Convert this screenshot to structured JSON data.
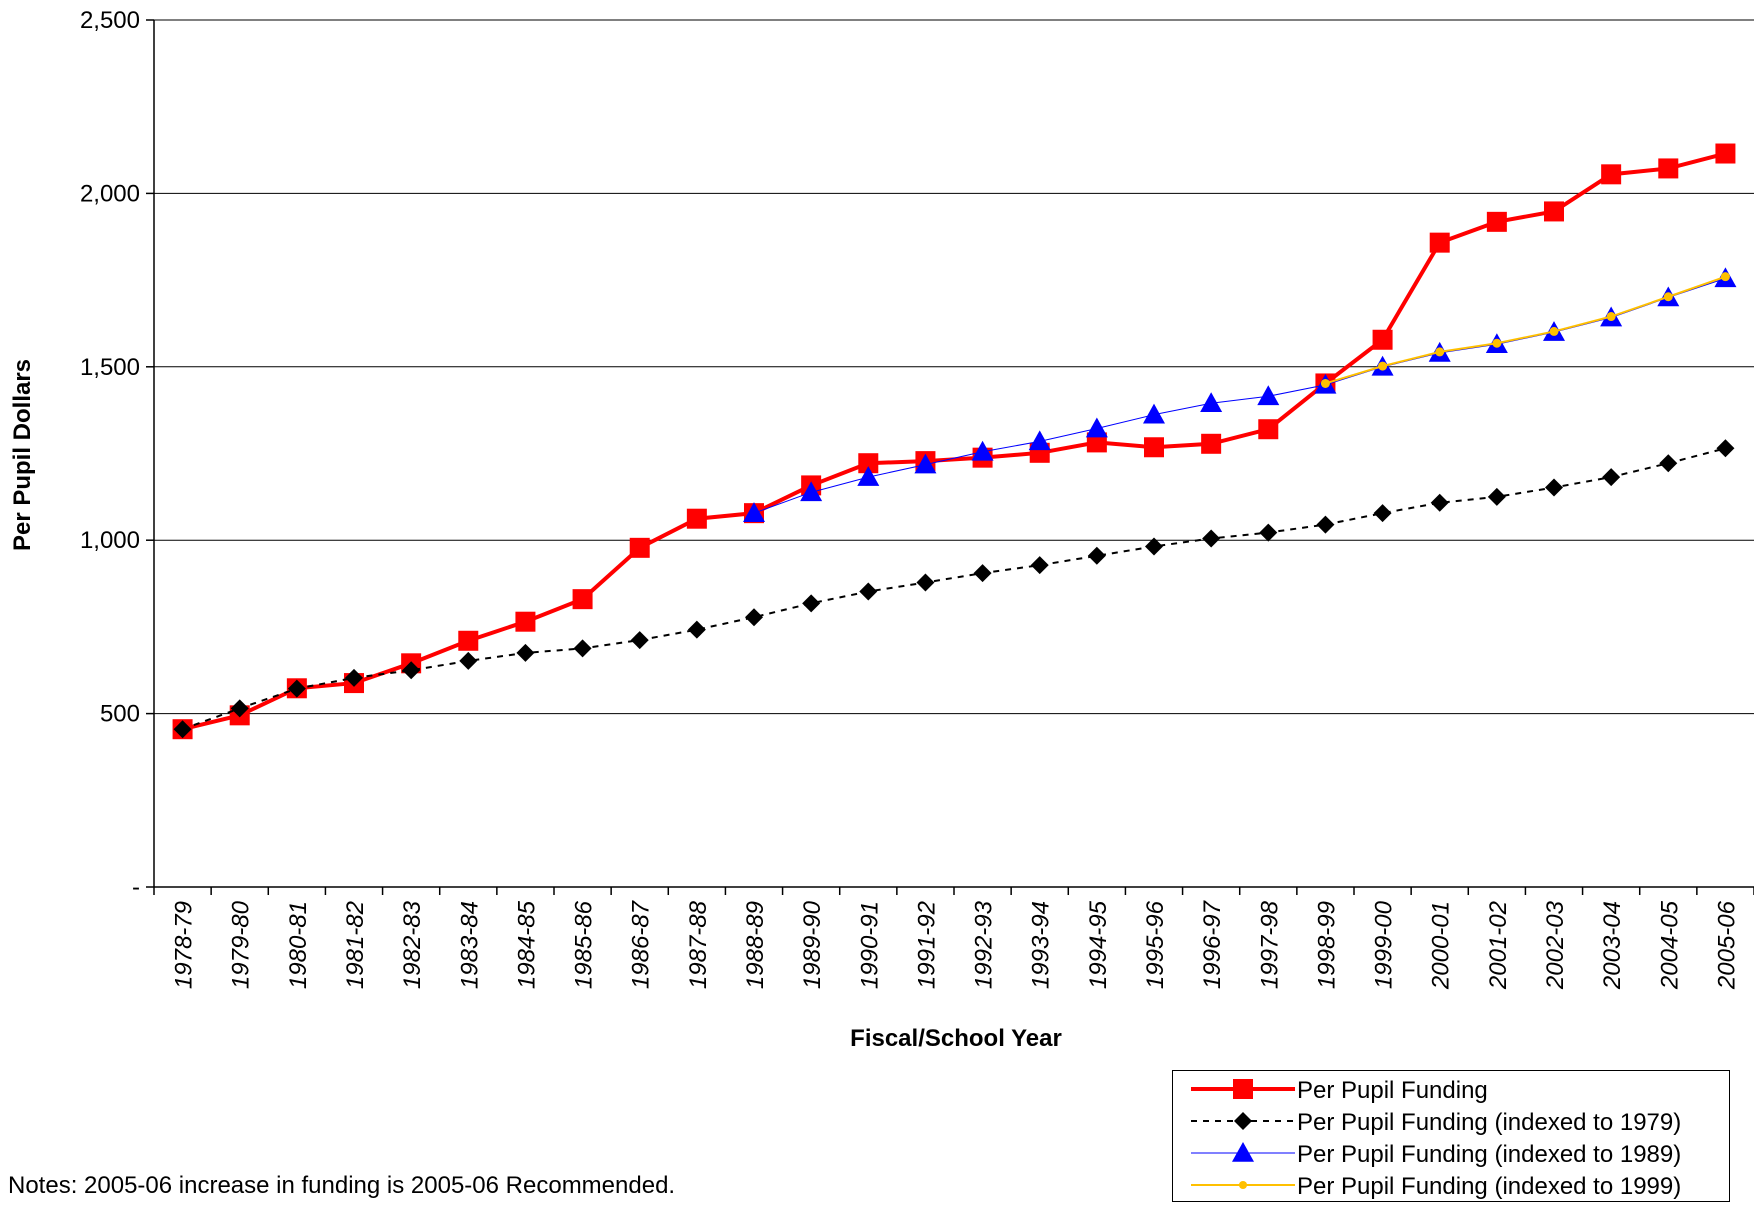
{
  "chart_data": {
    "type": "line",
    "title": "",
    "xlabel": "Fiscal/School Year",
    "ylabel": "Per Pupil Dollars",
    "ylim": [
      0,
      2500
    ],
    "yticks": [
      0,
      500,
      1000,
      1500,
      2000,
      2500
    ],
    "ytick_labels": [
      "-",
      "500",
      "1,000",
      "1,500",
      "2,000",
      "2,500"
    ],
    "grid": "horizontal",
    "legend_position": "bottom-right",
    "categories": [
      "1978-79",
      "1979-80",
      "1980-81",
      "1981-82",
      "1982-83",
      "1983-84",
      "1984-85",
      "1985-86",
      "1986-87",
      "1987-88",
      "1988-89",
      "1989-90",
      "1990-91",
      "1991-92",
      "1992-93",
      "1993-94",
      "1994-95",
      "1995-96",
      "1996-97",
      "1997-98",
      "1998-99",
      "1999-00",
      "2000-01",
      "2001-02",
      "2002-03",
      "2003-04",
      "2004-05",
      "2005-06"
    ],
    "series": [
      {
        "name": "Per Pupil Funding",
        "color": "#ff0000",
        "marker": "square",
        "line": "solid-thick",
        "values": [
          455,
          495,
          573,
          588,
          645,
          710,
          765,
          830,
          978,
          1062,
          1078,
          1158,
          1222,
          1228,
          1238,
          1252,
          1282,
          1268,
          1278,
          1320,
          1452,
          1578,
          1858,
          1918,
          1948,
          2055,
          2072,
          2115
        ]
      },
      {
        "name": "Per Pupil Funding (indexed to 1979)",
        "color": "#000000",
        "marker": "diamond",
        "line": "dashed",
        "values": [
          455,
          515,
          572,
          603,
          625,
          652,
          675,
          688,
          712,
          742,
          778,
          818,
          852,
          878,
          905,
          928,
          955,
          982,
          1005,
          1022,
          1045,
          1078,
          1108,
          1125,
          1152,
          1182,
          1222,
          1265
        ]
      },
      {
        "name": "Per Pupil Funding (indexed to 1989)",
        "color": "#0000ff",
        "marker": "triangle",
        "line": "thin",
        "values": [
          null,
          null,
          null,
          null,
          null,
          null,
          null,
          null,
          null,
          null,
          1078,
          1138,
          1182,
          1218,
          1255,
          1285,
          1322,
          1362,
          1395,
          1415,
          1448,
          1500,
          1540,
          1565,
          1600,
          1642,
          1700,
          1755
        ]
      },
      {
        "name": "Per Pupil Funding (indexed to 1999)",
        "color": "#ffc000",
        "marker": "circle",
        "line": "solid",
        "values": [
          null,
          null,
          null,
          null,
          null,
          null,
          null,
          null,
          null,
          null,
          null,
          null,
          null,
          null,
          null,
          null,
          null,
          null,
          null,
          null,
          1452,
          1502,
          1543,
          1568,
          1602,
          1645,
          1702,
          1760
        ]
      }
    ]
  },
  "legend": {
    "items": [
      {
        "label": "Per Pupil Funding",
        "color": "#ff0000",
        "marker": "square",
        "line": "solid-thick"
      },
      {
        "label": "Per Pupil Funding (indexed to 1979)",
        "color": "#000000",
        "marker": "diamond",
        "line": "dashed"
      },
      {
        "label": "Per Pupil Funding (indexed to 1989)",
        "color": "#0000ff",
        "marker": "triangle",
        "line": "thin"
      },
      {
        "label": "Per Pupil Funding (indexed to 1999)",
        "color": "#ffc000",
        "marker": "circle",
        "line": "solid"
      }
    ]
  },
  "notes": "Notes:  2005-06 increase in funding is 2005-06 Recommended."
}
